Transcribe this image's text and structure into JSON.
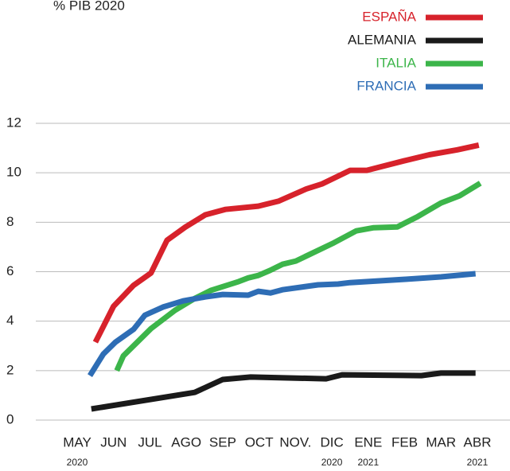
{
  "chart_data": {
    "type": "line",
    "subtitle": "% PIB 2020",
    "xlim": [
      0,
      11
    ],
    "xticks": [
      {
        "value": 0,
        "label": "MAY"
      },
      {
        "value": 1,
        "label": "JUN"
      },
      {
        "value": 2,
        "label": "JUL"
      },
      {
        "value": 3,
        "label": "AGO"
      },
      {
        "value": 4,
        "label": "SEP"
      },
      {
        "value": 5,
        "label": "OCT"
      },
      {
        "value": 6,
        "label": "NOV."
      },
      {
        "value": 7,
        "label": "DIC"
      },
      {
        "value": 8,
        "label": "ENE"
      },
      {
        "value": 9,
        "label": "FEB"
      },
      {
        "value": 10,
        "label": "MAR"
      },
      {
        "value": 11,
        "label": "ABR"
      }
    ],
    "x_sublabels": [
      {
        "value": 0,
        "label": "2020"
      },
      {
        "value": 7,
        "label": "2020"
      },
      {
        "value": 8,
        "label": "2021"
      },
      {
        "value": 11,
        "label": "2021"
      }
    ],
    "ylim": [
      0,
      12
    ],
    "yticks": [
      0,
      2,
      4,
      6,
      8,
      10,
      12
    ],
    "grid": true,
    "series": [
      {
        "name": "ESPAÑA",
        "color": "#d7222b",
        "x": [
          0.5,
          1.0,
          1.55,
          2.03,
          2.47,
          2.97,
          3.52,
          4.07,
          4.98,
          5.53,
          6.3,
          6.73,
          7.5,
          7.96,
          8.98,
          9.68,
          10.45,
          11.04
        ],
        "y": [
          3.15,
          4.6,
          5.45,
          5.95,
          7.27,
          7.8,
          8.3,
          8.52,
          8.65,
          8.85,
          9.35,
          9.55,
          10.1,
          10.1,
          10.48,
          10.73,
          10.93,
          11.12
        ]
      },
      {
        "name": "ALEMANIA",
        "color": "#1a1a1a",
        "x": [
          0.39,
          3.23,
          4.0,
          4.77,
          6.84,
          7.28,
          9.46,
          10.0,
          10.95
        ],
        "y": [
          0.45,
          1.12,
          1.64,
          1.74,
          1.67,
          1.83,
          1.8,
          1.9,
          1.9
        ]
      },
      {
        "name": "ITALIA",
        "color": "#3cb54a",
        "x": [
          1.09,
          1.27,
          2.03,
          2.69,
          3.23,
          3.67,
          4.44,
          4.7,
          4.98,
          5.3,
          5.64,
          6.01,
          7.06,
          7.67,
          8.15,
          8.8,
          9.36,
          10.0,
          10.51,
          11.08
        ],
        "y": [
          2.0,
          2.6,
          3.7,
          4.44,
          4.92,
          5.24,
          5.6,
          5.75,
          5.85,
          6.05,
          6.3,
          6.43,
          7.17,
          7.65,
          7.78,
          7.81,
          8.23,
          8.78,
          9.07,
          9.58
        ]
      },
      {
        "name": "FRANCIA",
        "color": "#2e6db5",
        "x": [
          0.35,
          0.72,
          1.05,
          1.55,
          1.86,
          2.36,
          2.91,
          3.52,
          4.0,
          4.7,
          4.98,
          5.31,
          5.64,
          6.62,
          7.17,
          7.5,
          8.98,
          10.0,
          10.95
        ],
        "y": [
          1.8,
          2.67,
          3.15,
          3.67,
          4.24,
          4.57,
          4.82,
          4.98,
          5.08,
          5.05,
          5.21,
          5.14,
          5.27,
          5.47,
          5.5,
          5.56,
          5.69,
          5.79,
          5.92
        ]
      }
    ]
  }
}
